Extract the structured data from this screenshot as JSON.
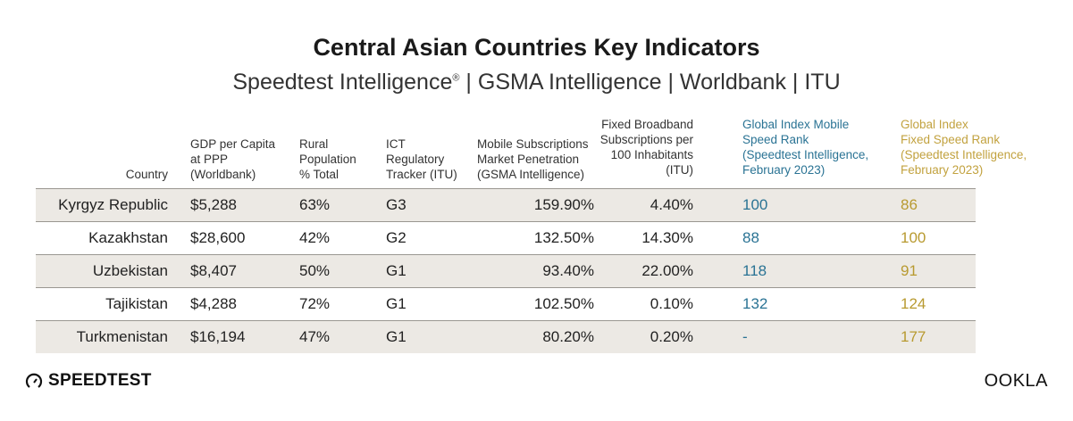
{
  "title": "Central Asian Countries Key Indicators",
  "subtitle": {
    "pre": "Speedtest Intelligence",
    "mark": "®",
    "post": " | GSMA Intelligence | Worldbank | ITU"
  },
  "headers": [
    "Country",
    "GDP per Capita\nat PPP\n(Worldbank)",
    "Rural\nPopulation\n% Total",
    "ICT\nRegulatory\nTracker (ITU)",
    "Mobile Subscriptions\nMarket Penetration\n(GSMA Intelligence)",
    "Fixed Broadband\nSubscriptions per\n100 Inhabitants\n(ITU)",
    "Global Index Mobile\nSpeed Rank\n(Speedtest Intelligence,\nFebruary 2023)",
    "Global Index\nFixed Speed Rank\n(Speedtest Intelligence,\nFebruary 2023)"
  ],
  "rows": [
    [
      "Kyrgyz Republic",
      "$5,288",
      "63%",
      "G3",
      "159.90%",
      "4.40%",
      "100",
      "86"
    ],
    [
      "Kazakhstan",
      "$28,600",
      "42%",
      "G2",
      "132.50%",
      "14.30%",
      "88",
      "100"
    ],
    [
      "Uzbekistan",
      "$8,407",
      "50%",
      "G1",
      "93.40%",
      "22.00%",
      "118",
      "91"
    ],
    [
      "Tajikistan",
      "$4,288",
      "72%",
      "G1",
      "102.50%",
      "0.10%",
      "132",
      "124"
    ],
    [
      "Turkmenistan",
      "$16,194",
      "47%",
      "G1",
      "80.20%",
      "0.20%",
      "-",
      "177"
    ]
  ],
  "colors": {
    "mobile_rank": "#2a7394",
    "fixed_rank": "#b89a30",
    "row_shade": "#ece9e4"
  },
  "logos": {
    "left": "SPEEDTEST",
    "right": "OOKLA"
  }
}
